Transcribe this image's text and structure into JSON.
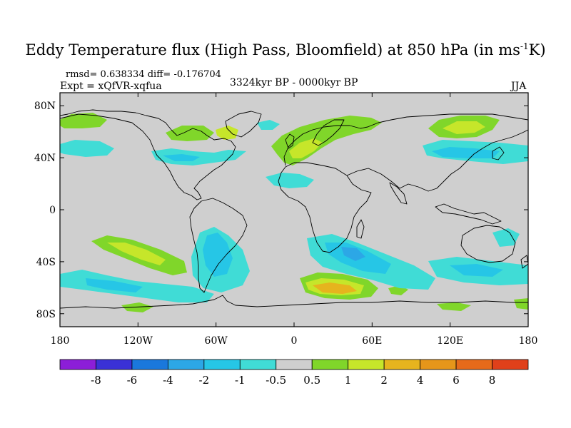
{
  "header": {
    "title_main": "Eddy Temperature flux (High Pass, Bloomfield) at 850 hPa (in ms",
    "title_sup": "-1",
    "title_end": "K)",
    "rmsd_line": "rmsd= 0.638334  diff= -0.176704",
    "expt_line": "Expt = xQfVR-xqfua",
    "period": "3324kyr BP - 0000kyr BP",
    "season": "JJA"
  },
  "map": {
    "projection": "cylindrical equidistant",
    "lon_range": [
      -180,
      180
    ],
    "lat_range": [
      -90,
      90
    ],
    "background_color": "#cfcfcf",
    "x_tick_labels": [
      "180",
      "120W",
      "60W",
      "0",
      "60E",
      "120E",
      "180"
    ],
    "y_tick_labels": [
      "80N",
      "40N",
      "0",
      "40S",
      "80S"
    ],
    "anomaly_regions": [
      {
        "region": "North Atlantic / northern Europe",
        "sign": "positive",
        "max_level": "1"
      },
      {
        "region": "Northeast Siberia",
        "sign": "positive",
        "max_level": "2"
      },
      {
        "region": "Alaska / Bering Sea",
        "sign": "positive",
        "max_level": "1"
      },
      {
        "region": "Hudson Bay",
        "sign": "positive",
        "max_level": "2"
      },
      {
        "region": "North Pacific",
        "sign": "negative",
        "min_level": "-2"
      },
      {
        "region": "North Atlantic 40N",
        "sign": "negative",
        "min_level": "-2"
      },
      {
        "region": "Mediterranean / North Africa",
        "sign": "negative",
        "min_level": "-1"
      },
      {
        "region": "South Pacific",
        "sign": "positive",
        "max_level": "2"
      },
      {
        "region": "South Atlantic",
        "sign": "negative",
        "min_level": "-2"
      },
      {
        "region": "South Indian Ocean",
        "sign": "negative",
        "min_level": "-2"
      },
      {
        "region": "Southern Ocean south of Africa",
        "sign": "positive",
        "max_level": "4"
      },
      {
        "region": "Antarctic coast",
        "sign": "positive",
        "max_level": "1"
      }
    ]
  },
  "colorbar": {
    "levels": [
      "-8",
      "-6",
      "-4",
      "-2",
      "-1",
      "-0.5",
      "0.5",
      "1",
      "2",
      "4",
      "6",
      "8"
    ],
    "colors": [
      "#8c1ed8",
      "#3a31d6",
      "#1a78dc",
      "#2ca7e6",
      "#26c6e6",
      "#40dcd6",
      "#cfcfcf",
      "#80d62a",
      "#c6e62a",
      "#e6b41e",
      "#e6961a",
      "#e66a1a",
      "#e0401a"
    ]
  }
}
